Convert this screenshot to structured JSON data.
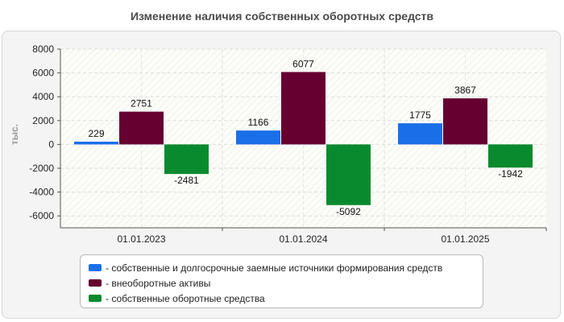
{
  "chart_data": {
    "type": "bar",
    "title": "Изменение наличия собственных оборотных средств",
    "ylabel": "тыс.",
    "xlabel": "",
    "ylim": [
      -7000,
      8000
    ],
    "yticks": [
      8000,
      6000,
      4000,
      2000,
      0,
      -2000,
      -4000,
      -6000
    ],
    "categories": [
      "01.01.2023",
      "01.01.2024",
      "01.01.2025"
    ],
    "series": [
      {
        "name": "- собственные и долгосрочные заемные источники формирования средств",
        "color": "#1a6fe8",
        "values": [
          229,
          1166,
          1775
        ]
      },
      {
        "name": "- внеоборотные активы",
        "color": "#650030",
        "values": [
          2751,
          6077,
          3867
        ]
      },
      {
        "name": "- собственные оборотные средства",
        "color": "#0a8a2e",
        "values": [
          -2481,
          -5092,
          -1942
        ]
      }
    ],
    "grid": true,
    "legend_position": "bottom"
  }
}
